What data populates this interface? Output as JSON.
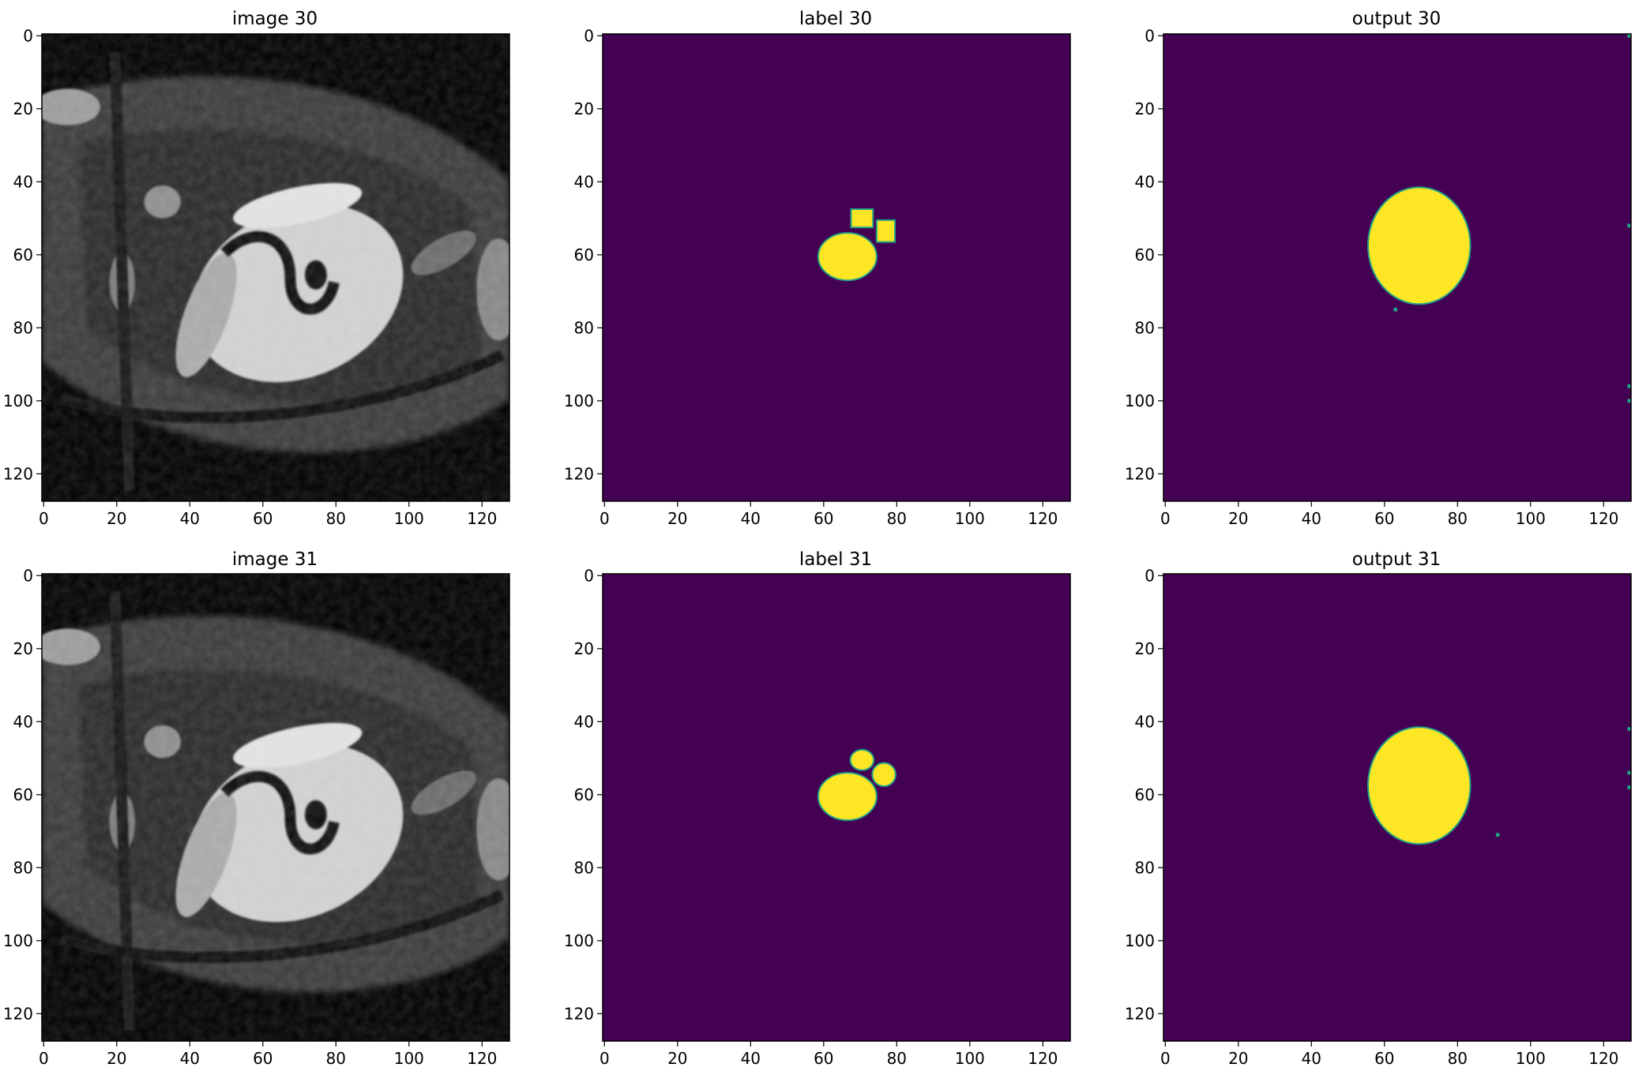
{
  "figure": {
    "colormap": "viridis",
    "colors": {
      "background": "#440154",
      "foreground": "#fde725",
      "edge": "#21a387"
    },
    "panels": [
      {
        "id": "image-30",
        "title": "image 30",
        "kind": "grayscale-mri"
      },
      {
        "id": "label-30",
        "title": "label 30",
        "kind": "segmentation-mask",
        "blobs": [
          {
            "shape": "ellipse",
            "cx": 67,
            "cy": 61,
            "rx": 8,
            "ry": 6.5
          },
          {
            "shape": "rect",
            "x0": 68,
            "y0": 48,
            "x1": 74,
            "y1": 53
          },
          {
            "shape": "rect",
            "x0": 75,
            "y0": 51,
            "x1": 80,
            "y1": 57
          }
        ],
        "specks": []
      },
      {
        "id": "output-30",
        "title": "output 30",
        "kind": "segmentation-mask",
        "blobs": [
          {
            "shape": "ellipse",
            "cx": 70,
            "cy": 58,
            "rx": 14,
            "ry": 16
          }
        ],
        "specks": [
          [
            127,
            0
          ],
          [
            127,
            52
          ],
          [
            127,
            96
          ],
          [
            127,
            100
          ],
          [
            63,
            75
          ]
        ]
      },
      {
        "id": "image-31",
        "title": "image 31",
        "kind": "grayscale-mri"
      },
      {
        "id": "label-31",
        "title": "label 31",
        "kind": "segmentation-mask",
        "blobs": [
          {
            "shape": "ellipse",
            "cx": 67,
            "cy": 61,
            "rx": 8,
            "ry": 6.5
          },
          {
            "shape": "ellipse",
            "cx": 71,
            "cy": 51,
            "rx": 3.2,
            "ry": 2.8
          },
          {
            "shape": "ellipse",
            "cx": 77,
            "cy": 55,
            "rx": 3.2,
            "ry": 3.2
          }
        ],
        "specks": []
      },
      {
        "id": "output-31",
        "title": "output 31",
        "kind": "segmentation-mask",
        "blobs": [
          {
            "shape": "ellipse",
            "cx": 70,
            "cy": 58,
            "rx": 14,
            "ry": 16
          }
        ],
        "specks": [
          [
            127,
            42
          ],
          [
            127,
            54
          ],
          [
            127,
            58
          ],
          [
            91,
            71
          ]
        ]
      }
    ]
  },
  "chart_data": {
    "type": "heatmap",
    "rows": 2,
    "cols": 3,
    "image_size": [
      128,
      128
    ],
    "axes": {
      "x_ticks": [
        0,
        20,
        40,
        60,
        80,
        100,
        120
      ],
      "y_ticks": [
        0,
        20,
        40,
        60,
        80,
        100,
        120
      ],
      "xlim": [
        0,
        128
      ],
      "ylim": [
        128,
        0
      ],
      "y_inverted": true
    }
  }
}
